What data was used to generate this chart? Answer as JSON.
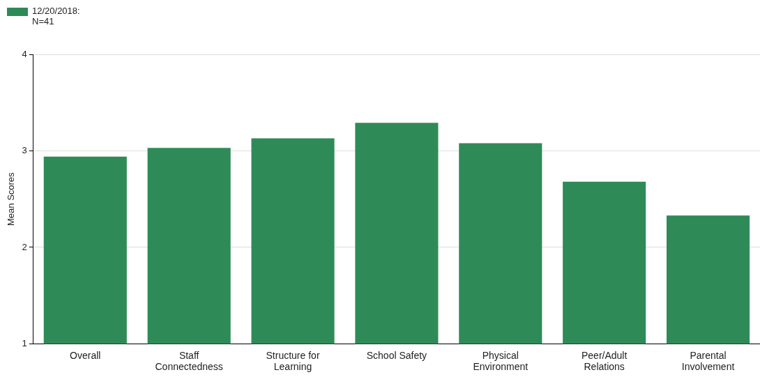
{
  "chart_data": {
    "type": "bar",
    "ylabel": "Mean Scores",
    "categories": [
      "Overall",
      "Staff Connectedness",
      "Structure for Learning",
      "School Safety",
      "Physical Environment",
      "Peer/Adult Relations",
      "Parental Involvement"
    ],
    "series": [
      {
        "name": "12/20/2018: N=41",
        "color": "#2e8b57",
        "values": [
          2.94,
          3.03,
          3.13,
          3.29,
          3.08,
          2.68,
          2.33
        ]
      }
    ],
    "ylim": [
      1,
      4
    ],
    "yticks": [
      1,
      2,
      3,
      4
    ],
    "grid": "y",
    "legend": "top left"
  }
}
